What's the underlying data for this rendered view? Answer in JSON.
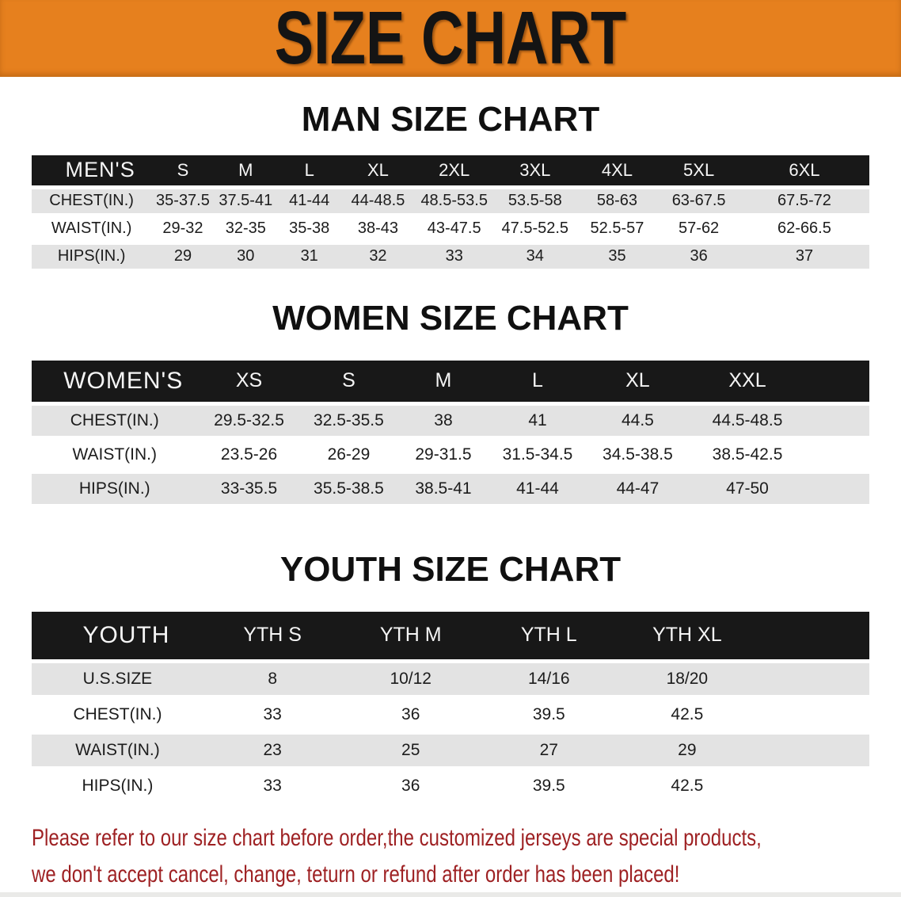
{
  "banner": {
    "title": "SIZE CHART"
  },
  "colors": {
    "banner_bg": "#E6801E",
    "banner_text": "#141414",
    "header_bar_bg": "#181818",
    "row_shaded": "#E3E3E3",
    "note_color": "#9E2123"
  },
  "charts": [
    {
      "id": "men",
      "heading": "MAN SIZE CHART",
      "header": {
        "label": "MEN'S",
        "sizes": [
          "S",
          "M",
          "L",
          "XL",
          "2XL",
          "3XL",
          "4XL",
          "5XL",
          "6XL"
        ]
      },
      "rows": [
        {
          "label": "CHEST(IN.)",
          "values": [
            "35-37.5",
            "37.5-41",
            "41-44",
            "44-48.5",
            "48.5-53.5",
            "53.5-58",
            "58-63",
            "63-67.5",
            "67.5-72"
          ]
        },
        {
          "label": "WAIST(IN.)",
          "values": [
            "29-32",
            "32-35",
            "35-38",
            "38-43",
            "43-47.5",
            "47.5-52.5",
            "52.5-57",
            "57-62",
            "62-66.5"
          ]
        },
        {
          "label": "HIPS(IN.)",
          "values": [
            "29",
            "30",
            "31",
            "32",
            "33",
            "34",
            "35",
            "36",
            "37"
          ]
        }
      ]
    },
    {
      "id": "women",
      "heading": "WOMEN SIZE CHART",
      "header": {
        "label": "WOMEN'S",
        "sizes": [
          "XS",
          "S",
          "M",
          "L",
          "XL",
          "XXL"
        ]
      },
      "rows": [
        {
          "label": "CHEST(IN.)",
          "values": [
            "29.5-32.5",
            "32.5-35.5",
            "38",
            "41",
            "44.5",
            "44.5-48.5"
          ]
        },
        {
          "label": "WAIST(IN.)",
          "values": [
            "23.5-26",
            "26-29",
            "29-31.5",
            "31.5-34.5",
            "34.5-38.5",
            "38.5-42.5"
          ]
        },
        {
          "label": "HIPS(IN.)",
          "values": [
            "33-35.5",
            "35.5-38.5",
            "38.5-41",
            "41-44",
            "44-47",
            "47-50"
          ]
        }
      ]
    },
    {
      "id": "youth",
      "heading": "YOUTH SIZE CHART",
      "header": {
        "label": "YOUTH",
        "sizes": [
          "YTH S",
          "YTH M",
          "YTH L",
          "YTH XL"
        ]
      },
      "rows": [
        {
          "label": "U.S.SIZE",
          "values": [
            "8",
            "10/12",
            "14/16",
            "18/20"
          ]
        },
        {
          "label": "CHEST(IN.)",
          "values": [
            "33",
            "36",
            "39.5",
            "42.5"
          ]
        },
        {
          "label": "WAIST(IN.)",
          "values": [
            "23",
            "25",
            "27",
            "29"
          ]
        },
        {
          "label": "HIPS(IN.)",
          "values": [
            "33",
            "36",
            "39.5",
            "42.5"
          ]
        }
      ]
    }
  ],
  "note": {
    "line1": "Please refer to our size chart before order,the customized jerseys are special products,",
    "line2": "we don't accept cancel, change, teturn or refund after order has been placed!"
  }
}
